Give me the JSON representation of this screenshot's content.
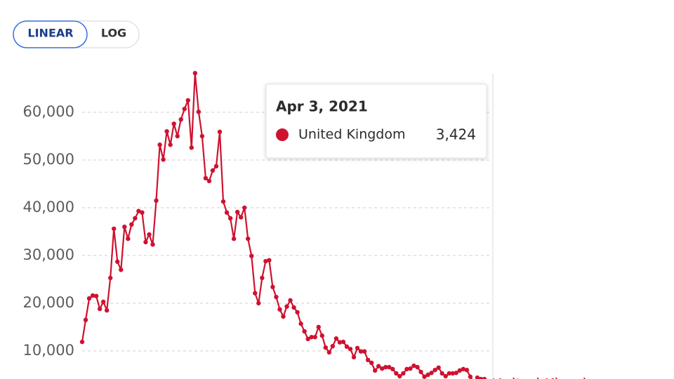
{
  "buttons": [
    "LINEAR",
    "LOG"
  ],
  "tooltip": {
    "date": "Apr 3, 2021",
    "series": "United Kingdom",
    "value": "3,424"
  },
  "chart_data": {
    "type": "line",
    "ylim": [
      0,
      70000
    ],
    "yticks": [
      {
        "value": 10000,
        "label": "10,000"
      },
      {
        "value": 20000,
        "label": "20,000"
      },
      {
        "value": 30000,
        "label": "30,000"
      },
      {
        "value": 40000,
        "label": "40,000"
      },
      {
        "value": 50000,
        "label": "50,000"
      },
      {
        "value": 60000,
        "label": "60,000"
      }
    ],
    "grid": true,
    "series": [
      {
        "name": "United Kingdom",
        "color": "#ce1230",
        "values": [
          11900,
          16500,
          21000,
          21600,
          21500,
          18800,
          20300,
          18500,
          25300,
          35600,
          28700,
          27000,
          36000,
          33500,
          36500,
          37800,
          39300,
          39000,
          32800,
          34400,
          32300,
          41500,
          53200,
          50100,
          56000,
          53200,
          57600,
          55000,
          58500,
          60700,
          62500,
          52600,
          68200,
          60100,
          55000,
          46200,
          45600,
          47800,
          48700,
          55900,
          41300,
          39000,
          37800,
          33500,
          39100,
          38000,
          40000,
          33500,
          29900,
          22100,
          20000,
          25300,
          28800,
          29000,
          23400,
          21300,
          18700,
          17200,
          19300,
          20600,
          19100,
          18100,
          15700,
          14100,
          12500,
          12900,
          12900,
          15000,
          13200,
          10700,
          9700,
          11000,
          12600,
          11800,
          11900,
          10900,
          10400,
          8700,
          10600,
          9900,
          9900,
          8100,
          7500,
          5900,
          6800,
          6300,
          6600,
          6600,
          6200,
          5300,
          4700,
          5300,
          6200,
          6300,
          6900,
          6600,
          5600,
          4600,
          5000,
          5400,
          6000,
          6500,
          5300,
          4700,
          5300,
          5300,
          5400,
          5900,
          6200,
          6000,
          4600,
          3424,
          4400,
          4100,
          4100,
          3424
        ]
      }
    ]
  }
}
